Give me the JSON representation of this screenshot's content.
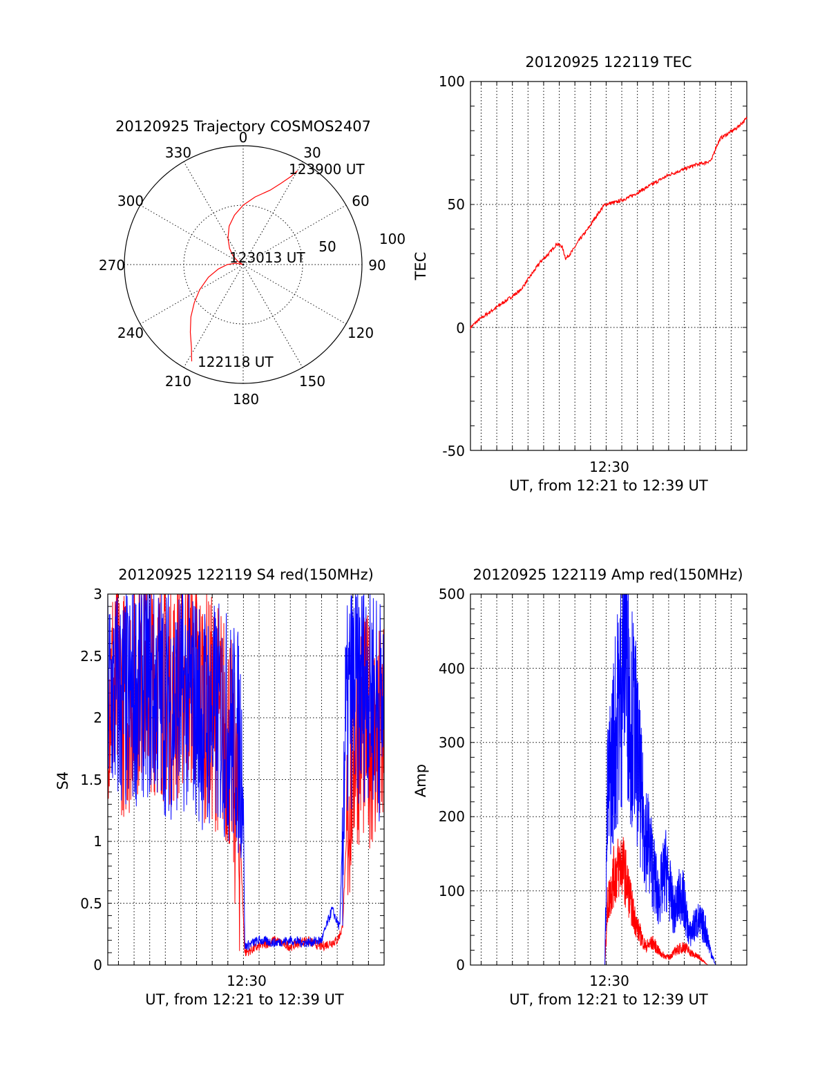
{
  "chart_data": [
    {
      "type": "polar",
      "title": "20120925 Trajectory COSMOS2407",
      "angle_labels": [
        "0",
        "30",
        "60",
        "90",
        "120",
        "150",
        "180",
        "210",
        "240",
        "270",
        "300",
        "330"
      ],
      "radius_labels": [
        "50",
        "100"
      ],
      "grid": true,
      "trace_color": "#ff0000",
      "trajectory": {
        "azimuth_deg": [
          208,
          212,
          218,
          225,
          232,
          240,
          250,
          260,
          270,
          280,
          290,
          300,
          310,
          320,
          330,
          340,
          350,
          0,
          10,
          20,
          25,
          28.5,
          30
        ],
        "elevation_deg": [
          7,
          16,
          25,
          34,
          43,
          52,
          62,
          71,
          78,
          84,
          89.5,
          85.5,
          80,
          74,
          67,
          59,
          52,
          45,
          38,
          30,
          22,
          14,
          8
        ]
      },
      "annotations": [
        "123900 UT",
        "123013 UT",
        "122118 UT"
      ]
    },
    {
      "type": "line",
      "title": "20120925 122119 TEC",
      "xlabel": "UT, from 12:21 to 12:39 UT",
      "ylabel": "TEC",
      "x_tick_labels": [
        "12:30"
      ],
      "y_tick_labels": [
        "100",
        "50",
        "0",
        "-50"
      ],
      "xlim": [
        "12:21:19",
        "12:39:00"
      ],
      "ylim": [
        -50,
        100
      ],
      "grid": true,
      "series": [
        {
          "color": "#ff0000",
          "x": [
            "12:21:19",
            "12:21:50",
            "12:22:30",
            "12:23:10",
            "12:23:50",
            "12:24:30",
            "12:25:10",
            "12:25:50",
            "12:26:20",
            "12:26:50",
            "12:27:10",
            "12:27:25",
            "12:27:50",
            "12:28:20",
            "12:28:50",
            "12:29:20",
            "12:29:55",
            "12:30:40",
            "12:31:30",
            "12:32:20",
            "12:33:10",
            "12:34:00",
            "12:34:50",
            "12:35:40",
            "12:36:20",
            "12:36:45",
            "12:37:00",
            "12:37:20",
            "12:37:50",
            "12:38:20",
            "12:39:00"
          ],
          "values": [
            0,
            3,
            6,
            9,
            12,
            15,
            21,
            27,
            30,
            34,
            33,
            28,
            31,
            36,
            40,
            45,
            50,
            51,
            53,
            56,
            59,
            62,
            64,
            66,
            67,
            68,
            73,
            77,
            79,
            81,
            85
          ]
        }
      ]
    },
    {
      "type": "line",
      "title": "20120925 122119 S4 red(150MHz)",
      "xlabel": "UT, from 12:21 to 12:39 UT",
      "ylabel": "S4",
      "x_tick_labels": [
        "12:30"
      ],
      "y_tick_labels": [
        "3",
        "2.5",
        "2",
        "1.5",
        "1",
        "0.5",
        "0"
      ],
      "xlim": [
        "12:21:19",
        "12:39:00"
      ],
      "ylim": [
        0,
        3
      ],
      "grid": true,
      "series": [
        {
          "color": "#ff0000",
          "x": [
            "12:21:19",
            "12:22:30",
            "12:23:30",
            "12:24:30",
            "12:25:30",
            "12:26:30",
            "12:27:30",
            "12:28:30",
            "12:29:10",
            "12:29:30",
            "12:29:50",
            "12:30:05",
            "12:31:00",
            "12:32:00",
            "12:33:00",
            "12:34:00",
            "12:35:00",
            "12:36:00",
            "12:36:20",
            "12:36:40",
            "12:37:10",
            "12:38:00",
            "12:39:00"
          ],
          "values": [
            2.3,
            2.1,
            2.4,
            2.3,
            2.2,
            2.4,
            2.1,
            2.0,
            1.8,
            1.3,
            0.9,
            0.1,
            0.15,
            0.2,
            0.15,
            0.2,
            0.15,
            0.2,
            0.3,
            1.2,
            1.9,
            1.9,
            1.8
          ]
        },
        {
          "color": "#0000ff",
          "x": [
            "12:21:19",
            "12:22:30",
            "12:23:30",
            "12:24:30",
            "12:25:30",
            "12:26:30",
            "12:27:30",
            "12:28:30",
            "12:29:10",
            "12:29:40",
            "12:29:58",
            "12:30:05",
            "12:31:00",
            "12:32:00",
            "12:33:00",
            "12:34:00",
            "12:35:00",
            "12:35:40",
            "12:36:10",
            "12:36:30",
            "12:36:50",
            "12:37:20",
            "12:38:00",
            "12:39:00"
          ],
          "values": [
            2.2,
            2.1,
            2.3,
            2.2,
            2.1,
            2.2,
            2.0,
            2.0,
            1.9,
            1.8,
            1.7,
            0.15,
            0.2,
            0.18,
            0.2,
            0.18,
            0.2,
            0.45,
            0.3,
            1.8,
            2.2,
            2.2,
            2.3,
            2.0
          ]
        }
      ]
    },
    {
      "type": "line",
      "title": "20120925 122119 Amp red(150MHz)",
      "xlabel": "UT, from 12:21 to 12:39 UT",
      "ylabel": "Amp",
      "x_tick_labels": [
        "12:30"
      ],
      "y_tick_labels": [
        "500",
        "400",
        "300",
        "200",
        "100",
        "0"
      ],
      "xlim": [
        "12:21:19",
        "12:39:00"
      ],
      "ylim": [
        0,
        500
      ],
      "grid": true,
      "series": [
        {
          "color": "#ff0000",
          "x": [
            "12:21:19",
            "12:29:30",
            "12:29:55",
            "12:30:05",
            "12:30:30",
            "12:31:00",
            "12:31:20",
            "12:31:40",
            "12:32:00",
            "12:32:30",
            "12:33:00",
            "12:33:30",
            "12:34:00",
            "12:34:30",
            "12:35:00",
            "12:35:30",
            "12:36:00",
            "12:36:30",
            "12:39:00"
          ],
          "values": [
            0,
            0,
            0,
            80,
            120,
            140,
            110,
            75,
            50,
            25,
            30,
            15,
            10,
            20,
            25,
            15,
            10,
            0,
            0
          ]
        },
        {
          "color": "#0000ff",
          "x": [
            "12:21:19",
            "12:29:30",
            "12:29:55",
            "12:30:05",
            "12:30:30",
            "12:31:00",
            "12:31:10",
            "12:31:30",
            "12:31:50",
            "12:32:20",
            "12:32:50",
            "12:33:20",
            "12:33:50",
            "12:34:20",
            "12:34:50",
            "12:35:20",
            "12:35:50",
            "12:36:20",
            "12:36:40",
            "12:37:00",
            "12:39:00"
          ],
          "values": [
            0,
            0,
            0,
            220,
            300,
            380,
            490,
            350,
            320,
            200,
            150,
            90,
            130,
            70,
            100,
            40,
            60,
            50,
            20,
            0,
            0
          ]
        }
      ]
    }
  ]
}
